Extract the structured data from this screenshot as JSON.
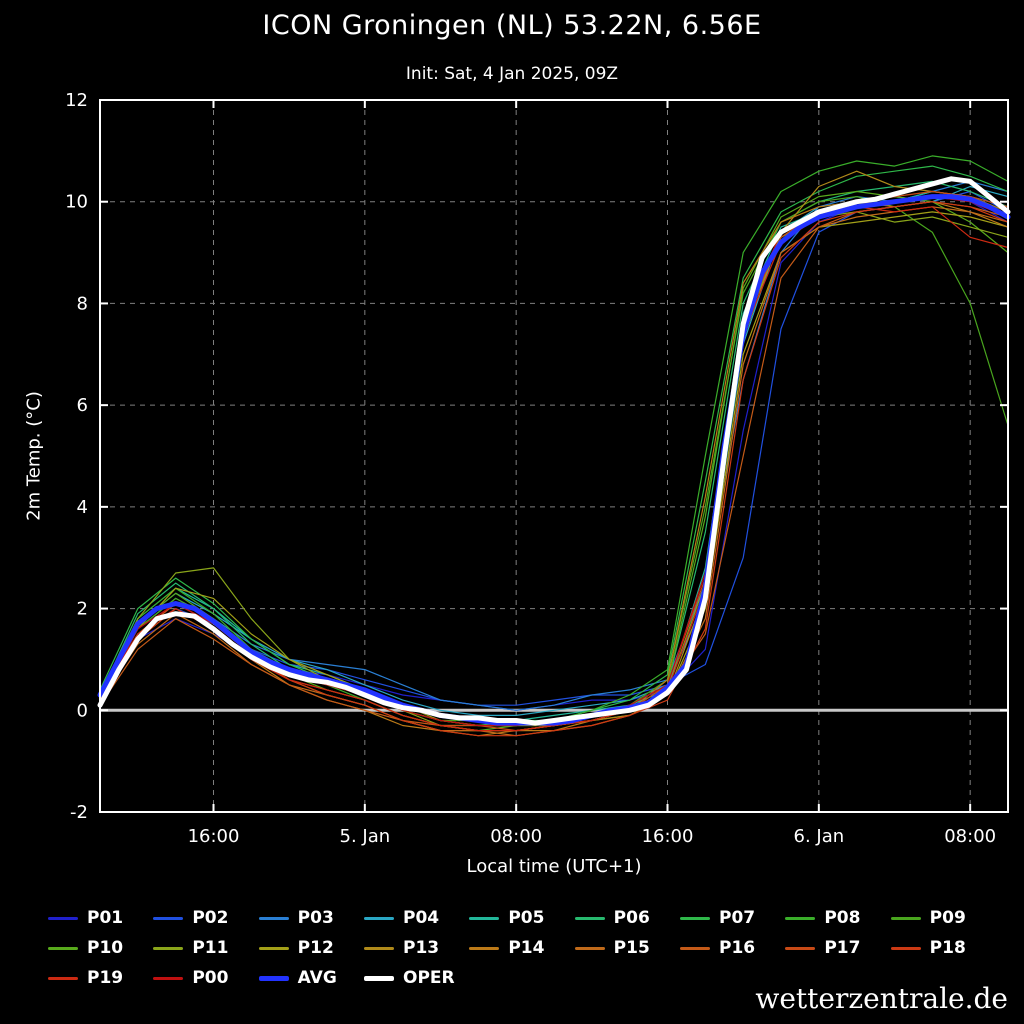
{
  "title": "ICON Groningen (NL) 53.22N, 6.56E",
  "subtitle": "Init: Sat, 4 Jan 2025, 09Z",
  "watermark": "wetterzentrale.de",
  "axes": {
    "x_label": "Local time (UTC+1)",
    "y_label": "2m Temp. (°C)",
    "x_range": [
      0,
      48
    ],
    "y_range": [
      -2,
      12
    ],
    "x_ticks": [
      {
        "pos": 6,
        "label": "16:00"
      },
      {
        "pos": 14,
        "label": "5. Jan"
      },
      {
        "pos": 22,
        "label": "08:00"
      },
      {
        "pos": 30,
        "label": "16:00"
      },
      {
        "pos": 38,
        "label": "6. Jan"
      },
      {
        "pos": 46,
        "label": "08:00"
      }
    ],
    "y_ticks": [
      {
        "pos": 12,
        "label": "12"
      },
      {
        "pos": 10,
        "label": "10"
      },
      {
        "pos": 8,
        "label": "8"
      },
      {
        "pos": 6,
        "label": "6"
      },
      {
        "pos": 4,
        "label": "4"
      },
      {
        "pos": 2,
        "label": "2"
      },
      {
        "pos": 0,
        "label": "0"
      },
      {
        "pos": -2,
        "label": "-2"
      }
    ],
    "zero_line_value": 0,
    "grid": true
  },
  "chart_data": {
    "type": "line",
    "title": "ICON Groningen (NL) 53.22N, 6.56E",
    "subtitle": "Init: Sat, 4 Jan 2025, 09Z",
    "xlabel": "Local time (UTC+1)",
    "ylabel": "2m Temp. (°C)",
    "x_unit": "hours since Sat 4 Jan 2025 10:00 local (UTC+1)",
    "xlim": [
      0,
      48
    ],
    "ylim": [
      -2,
      12
    ],
    "legend_position": "bottom",
    "x_hourly": [
      0,
      1,
      2,
      3,
      4,
      5,
      6,
      7,
      8,
      9,
      10,
      11,
      12,
      13,
      14,
      15,
      16,
      17,
      18,
      19,
      20,
      21,
      22,
      23,
      24,
      25,
      26,
      27,
      28,
      29,
      30,
      31,
      32,
      33,
      34,
      35,
      36,
      37,
      38,
      39,
      40,
      41,
      42,
      43,
      44,
      45,
      46,
      47,
      48
    ],
    "x_2hourly": [
      0,
      2,
      4,
      6,
      8,
      10,
      12,
      14,
      16,
      18,
      20,
      22,
      24,
      26,
      28,
      30,
      32,
      34,
      36,
      38,
      40,
      42,
      44,
      46,
      48
    ],
    "series": [
      {
        "name": "P01",
        "color": "#2020cc",
        "width": 1.2,
        "x": "x_2hourly",
        "values": [
          0.3,
          1.4,
          1.8,
          1.5,
          1.1,
          0.8,
          0.7,
          0.5,
          0.3,
          0.2,
          0.1,
          0.0,
          0.1,
          0.2,
          0.2,
          0.4,
          1.2,
          5.5,
          8.8,
          9.6,
          9.9,
          10.0,
          10.1,
          10.0,
          9.6
        ]
      },
      {
        "name": "P02",
        "color": "#2050e0",
        "width": 1.2,
        "x": "x_2hourly",
        "values": [
          0.2,
          1.5,
          2.0,
          1.7,
          1.2,
          0.9,
          0.8,
          0.6,
          0.4,
          0.2,
          0.1,
          0.1,
          0.2,
          0.3,
          0.3,
          0.5,
          0.9,
          3.0,
          7.5,
          9.4,
          9.8,
          9.9,
          10.0,
          10.2,
          9.8
        ]
      },
      {
        "name": "P03",
        "color": "#2a7fd4",
        "width": 1.2,
        "x": "x_2hourly",
        "values": [
          0.4,
          1.6,
          2.2,
          1.8,
          1.3,
          1.0,
          0.9,
          0.8,
          0.5,
          0.2,
          0.1,
          0.0,
          0.1,
          0.3,
          0.4,
          0.6,
          2.5,
          6.5,
          9.0,
          9.9,
          10.1,
          10.0,
          10.2,
          10.4,
          10.2
        ]
      },
      {
        "name": "P04",
        "color": "#2aa7c4",
        "width": 1.2,
        "x": "x_2hourly",
        "values": [
          0.3,
          1.7,
          2.3,
          1.9,
          1.4,
          1.0,
          0.8,
          0.5,
          0.2,
          0.0,
          -0.1,
          -0.1,
          0.0,
          0.1,
          0.2,
          0.5,
          2.2,
          7.2,
          9.4,
          9.9,
          10.0,
          10.1,
          10.0,
          10.3,
          10.1
        ]
      },
      {
        "name": "P05",
        "color": "#22b79a",
        "width": 1.2,
        "x": "x_2hourly",
        "values": [
          0.2,
          1.8,
          2.4,
          2.0,
          1.4,
          0.9,
          0.7,
          0.4,
          0.1,
          -0.1,
          -0.2,
          -0.2,
          -0.1,
          0.0,
          0.1,
          0.4,
          2.8,
          7.8,
          9.5,
          9.8,
          9.9,
          10.0,
          10.2,
          10.1,
          9.9
        ]
      },
      {
        "name": "P06",
        "color": "#27b96f",
        "width": 1.2,
        "x": "x_2hourly",
        "values": [
          0.3,
          1.9,
          2.5,
          2.0,
          1.3,
          0.8,
          0.6,
          0.3,
          0.0,
          -0.2,
          -0.3,
          -0.3,
          -0.2,
          -0.1,
          0.1,
          0.5,
          3.5,
          8.0,
          9.6,
          10.0,
          10.2,
          10.3,
          10.4,
          10.2,
          9.9
        ]
      },
      {
        "name": "P07",
        "color": "#2fb84a",
        "width": 1.2,
        "x": "x_2hourly",
        "values": [
          0.4,
          2.0,
          2.6,
          2.1,
          1.4,
          0.9,
          0.6,
          0.3,
          0.0,
          -0.2,
          -0.3,
          -0.2,
          -0.2,
          0.0,
          0.2,
          0.7,
          4.5,
          8.5,
          9.8,
          10.2,
          10.5,
          10.6,
          10.7,
          10.5,
          10.2
        ]
      },
      {
        "name": "P08",
        "color": "#3aae2a",
        "width": 1.2,
        "x": "x_2hourly",
        "values": [
          0.3,
          1.8,
          2.4,
          1.9,
          1.2,
          0.8,
          0.5,
          0.2,
          -0.1,
          -0.3,
          -0.3,
          -0.3,
          -0.2,
          0.0,
          0.3,
          0.8,
          5.0,
          9.0,
          10.2,
          10.6,
          10.8,
          10.7,
          10.9,
          10.8,
          10.4
        ]
      },
      {
        "name": "P09",
        "color": "#49a51e",
        "width": 1.2,
        "x": "x_2hourly",
        "values": [
          0.2,
          1.6,
          2.2,
          1.8,
          1.2,
          0.7,
          0.5,
          0.3,
          0.0,
          -0.2,
          -0.2,
          -0.3,
          -0.2,
          -0.1,
          0.1,
          0.6,
          4.0,
          8.2,
          9.6,
          10.0,
          10.1,
          9.9,
          9.4,
          8.0,
          5.6
        ]
      },
      {
        "name": "P10",
        "color": "#58aa1c",
        "width": 1.2,
        "x": "x_2hourly",
        "values": [
          0.3,
          1.7,
          2.3,
          1.8,
          1.1,
          0.7,
          0.4,
          0.2,
          -0.1,
          -0.3,
          -0.4,
          -0.3,
          -0.3,
          -0.1,
          0.0,
          0.5,
          3.8,
          8.3,
          9.7,
          10.1,
          10.2,
          10.1,
          10.0,
          9.6,
          9.0
        ]
      },
      {
        "name": "P11",
        "color": "#8aa51a",
        "width": 1.2,
        "x": "x_2hourly",
        "values": [
          0.2,
          1.8,
          2.7,
          2.8,
          1.8,
          1.0,
          0.6,
          0.3,
          0.0,
          -0.3,
          -0.4,
          -0.4,
          -0.3,
          -0.2,
          0.0,
          0.4,
          2.5,
          7.5,
          9.3,
          9.7,
          9.8,
          9.6,
          9.7,
          9.5,
          9.3
        ]
      },
      {
        "name": "P12",
        "color": "#a3a018",
        "width": 1.2,
        "x": "x_2hourly",
        "values": [
          0.3,
          1.6,
          2.4,
          2.2,
          1.5,
          1.0,
          0.7,
          0.4,
          0.1,
          -0.2,
          -0.3,
          -0.3,
          -0.3,
          -0.2,
          -0.1,
          0.3,
          2.0,
          7.0,
          9.0,
          9.5,
          9.6,
          9.7,
          9.8,
          9.7,
          9.5
        ]
      },
      {
        "name": "P13",
        "color": "#b08a1a",
        "width": 1.2,
        "x": "x_2hourly",
        "values": [
          0.2,
          1.5,
          2.1,
          1.7,
          1.1,
          0.6,
          0.3,
          0.1,
          -0.2,
          -0.4,
          -0.4,
          -0.4,
          -0.3,
          -0.2,
          -0.1,
          0.3,
          2.3,
          7.3,
          9.4,
          10.3,
          10.6,
          10.3,
          10.2,
          10.1,
          9.8
        ]
      },
      {
        "name": "P14",
        "color": "#bc7a18",
        "width": 1.2,
        "x": "x_2hourly",
        "values": [
          0.1,
          1.4,
          2.0,
          1.6,
          1.0,
          0.5,
          0.2,
          0.0,
          -0.3,
          -0.4,
          -0.5,
          -0.4,
          -0.4,
          -0.2,
          0.0,
          0.6,
          4.2,
          8.4,
          9.6,
          9.9,
          10.0,
          9.9,
          10.0,
          9.8,
          9.5
        ]
      },
      {
        "name": "P15",
        "color": "#c06a1a",
        "width": 1.2,
        "x": "x_2hourly",
        "values": [
          0.2,
          1.3,
          1.9,
          1.5,
          0.9,
          0.5,
          0.3,
          0.1,
          -0.2,
          -0.4,
          -0.4,
          -0.5,
          -0.4,
          -0.3,
          -0.1,
          0.3,
          1.8,
          6.8,
          9.0,
          9.5,
          9.7,
          9.8,
          9.9,
          9.8,
          9.6
        ]
      },
      {
        "name": "P16",
        "color": "#c45a18",
        "width": 1.2,
        "x": "x_2hourly",
        "values": [
          0.1,
          1.2,
          1.8,
          1.4,
          0.9,
          0.5,
          0.2,
          0.0,
          -0.2,
          -0.3,
          -0.4,
          -0.4,
          -0.3,
          -0.2,
          0.0,
          0.4,
          1.5,
          5.0,
          8.5,
          9.5,
          9.8,
          9.9,
          10.0,
          9.9,
          9.7
        ]
      },
      {
        "name": "P17",
        "color": "#c84a16",
        "width": 1.2,
        "x": "x_2hourly",
        "values": [
          0.3,
          1.5,
          2.1,
          1.7,
          1.1,
          0.6,
          0.4,
          0.2,
          -0.1,
          -0.3,
          -0.3,
          -0.4,
          -0.3,
          -0.2,
          0.0,
          0.5,
          2.6,
          7.6,
          9.3,
          9.8,
          10.0,
          10.1,
          10.2,
          10.1,
          9.9
        ]
      },
      {
        "name": "P18",
        "color": "#cc3a14",
        "width": 1.2,
        "x": "x_2hourly",
        "values": [
          0.2,
          1.4,
          2.0,
          1.6,
          1.0,
          0.6,
          0.3,
          0.1,
          -0.2,
          -0.4,
          -0.5,
          -0.5,
          -0.4,
          -0.3,
          -0.1,
          0.2,
          1.6,
          6.5,
          8.9,
          9.6,
          9.8,
          9.9,
          10.0,
          9.9,
          9.6
        ]
      },
      {
        "name": "P19",
        "color": "#cc2a12",
        "width": 1.2,
        "x": "x_2hourly",
        "values": [
          0.3,
          1.5,
          2.0,
          1.6,
          1.0,
          0.6,
          0.4,
          0.2,
          -0.1,
          -0.3,
          -0.4,
          -0.4,
          -0.3,
          -0.2,
          0.0,
          0.4,
          2.4,
          7.4,
          9.2,
          9.7,
          9.9,
          9.8,
          9.9,
          9.3,
          9.1
        ]
      },
      {
        "name": "P00",
        "color": "#c01010",
        "width": 1.2,
        "x": "x_2hourly",
        "values": [
          0.2,
          1.6,
          2.1,
          1.7,
          1.1,
          0.7,
          0.5,
          0.3,
          0.0,
          -0.2,
          -0.3,
          -0.3,
          -0.2,
          -0.1,
          0.1,
          0.5,
          2.7,
          7.7,
          9.4,
          9.8,
          9.9,
          10.0,
          10.1,
          10.0,
          9.7
        ]
      },
      {
        "name": "AVG",
        "color": "#2233ff",
        "width": 5,
        "x": "x_hourly",
        "values": [
          0.3,
          1.0,
          1.7,
          2.0,
          2.1,
          2.0,
          1.75,
          1.45,
          1.15,
          0.95,
          0.8,
          0.7,
          0.6,
          0.5,
          0.4,
          0.25,
          0.1,
          0.0,
          -0.1,
          -0.15,
          -0.2,
          -0.25,
          -0.25,
          -0.25,
          -0.25,
          -0.2,
          -0.1,
          0.0,
          0.05,
          0.15,
          0.45,
          0.9,
          2.4,
          5.2,
          7.4,
          8.6,
          9.2,
          9.5,
          9.7,
          9.8,
          9.9,
          9.95,
          10.0,
          10.05,
          10.1,
          10.1,
          10.05,
          9.9,
          9.7
        ]
      },
      {
        "name": "OPER",
        "color": "#ffffff",
        "width": 5,
        "x": "x_hourly",
        "values": [
          0.1,
          0.8,
          1.4,
          1.8,
          1.9,
          1.85,
          1.6,
          1.3,
          1.05,
          0.85,
          0.7,
          0.6,
          0.55,
          0.45,
          0.3,
          0.15,
          0.05,
          0.0,
          -0.1,
          -0.15,
          -0.15,
          -0.2,
          -0.2,
          -0.25,
          -0.2,
          -0.15,
          -0.1,
          -0.05,
          0.0,
          0.1,
          0.35,
          0.8,
          2.2,
          5.0,
          7.6,
          8.9,
          9.4,
          9.6,
          9.8,
          9.9,
          10.0,
          10.05,
          10.15,
          10.25,
          10.35,
          10.45,
          10.4,
          10.1,
          9.8
        ]
      }
    ]
  },
  "colors": {
    "background": "#000000",
    "frame": "#ffffff",
    "grid": "#808080",
    "zero_line": "#c8c8c8",
    "avg": "#2233ff",
    "oper": "#ffffff"
  }
}
